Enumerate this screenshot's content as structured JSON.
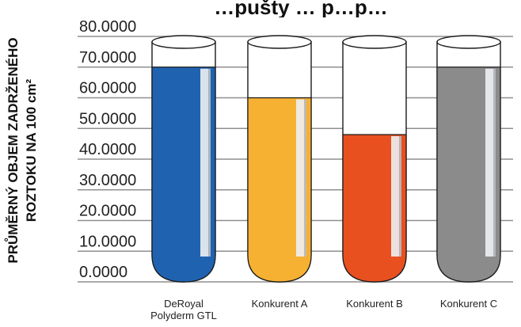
{
  "chart_data": {
    "type": "bar",
    "title": "…pušty … p…p…",
    "ylabel_lines": [
      "PRŮMĚRNÝ OBJEM ZADRŽENÉHO",
      "ROZTOKU NA 100 cm²"
    ],
    "ylim": [
      0,
      80
    ],
    "yticks": [
      "0.0000",
      "10.0000",
      "20.0000",
      "30.0000",
      "40.0000",
      "50.0000",
      "60.0000",
      "70.0000",
      "80.0000"
    ],
    "grid": true,
    "categories": [
      [
        "DeRoyal",
        "Polyderm GTL"
      ],
      [
        "Konkurent A"
      ],
      [
        "Konkurent B"
      ],
      [
        "Konkurent C"
      ]
    ],
    "values": [
      70,
      60,
      48,
      70
    ],
    "colors": [
      "#1f63b0",
      "#f6b133",
      "#e8501f",
      "#8b8b8c"
    ]
  }
}
